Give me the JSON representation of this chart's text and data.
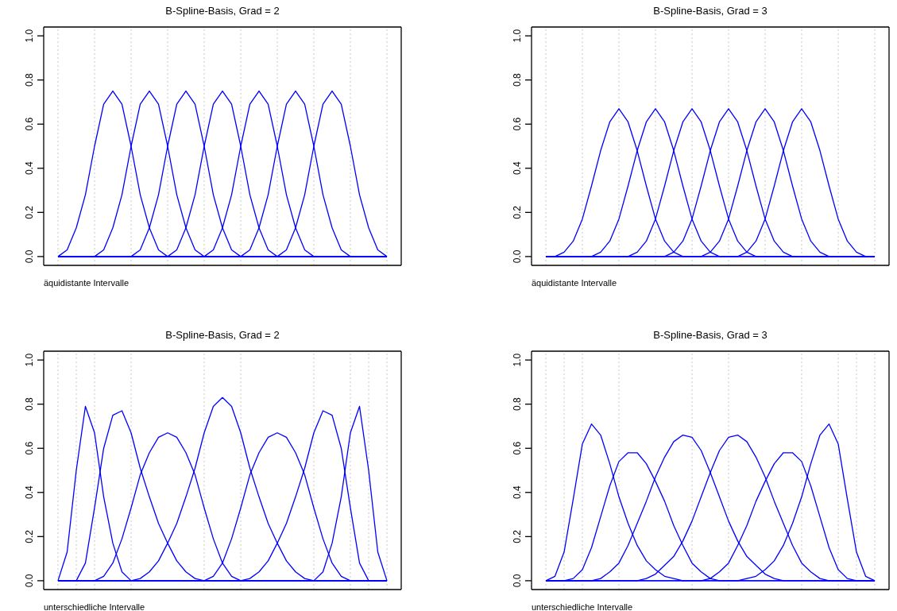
{
  "chart_data": [
    {
      "type": "line",
      "title": "B-Spline-Basis, Grad = 2",
      "annotations": [
        "äquidistante Intervalle"
      ],
      "categories": [
        null,
        null,
        null,
        null,
        null,
        null,
        null,
        null,
        null,
        null,
        null,
        null,
        null,
        null,
        null,
        null,
        null,
        null,
        null,
        null,
        null,
        null,
        null,
        null,
        null,
        null,
        null,
        null,
        null,
        null,
        null,
        null,
        null,
        null,
        null,
        null,
        null
      ],
      "ylim": [
        -0.04,
        1.04
      ],
      "yticks": [
        {
          "value": 0,
          "label": "0.0"
        },
        {
          "value": 0.2,
          "label": "0.2"
        },
        {
          "value": 0.4,
          "label": "0.4"
        },
        {
          "value": 0.6,
          "label": "0.6"
        },
        {
          "value": 0.8,
          "label": "0.8"
        },
        {
          "value": 1,
          "label": "1.0"
        }
      ],
      "tick_labels": "y",
      "grid": "x",
      "series": [
        {
          "color": "#0000ff",
          "values": [
            0,
            0.03,
            0.13,
            0.28,
            0.5,
            0.69,
            0.75,
            0.69,
            0.5,
            0.28,
            0.13,
            0.03,
            0,
            0,
            0,
            0,
            0,
            0,
            0,
            0,
            0,
            0,
            0,
            0,
            0,
            0,
            0,
            0,
            0,
            0,
            0,
            0,
            0,
            0,
            0,
            0,
            0
          ]
        },
        {
          "color": "#0000ff",
          "values": [
            0,
            0,
            0,
            0,
            0,
            0.03,
            0.13,
            0.28,
            0.5,
            0.69,
            0.75,
            0.69,
            0.5,
            0.28,
            0.13,
            0.03,
            0,
            0,
            0,
            0,
            0,
            0,
            0,
            0,
            0,
            0,
            0,
            0,
            0,
            0,
            0,
            0,
            0,
            0,
            0,
            0,
            0
          ]
        },
        {
          "color": "#0000ff",
          "values": [
            0,
            0,
            0,
            0,
            0,
            0,
            0,
            0,
            0,
            0.03,
            0.13,
            0.28,
            0.5,
            0.69,
            0.75,
            0.69,
            0.5,
            0.28,
            0.13,
            0.03,
            0,
            0,
            0,
            0,
            0,
            0,
            0,
            0,
            0,
            0,
            0,
            0,
            0,
            0,
            0,
            0,
            0
          ]
        },
        {
          "color": "#0000ff",
          "values": [
            0,
            0,
            0,
            0,
            0,
            0,
            0,
            0,
            0,
            0,
            0,
            0,
            0,
            0.03,
            0.13,
            0.28,
            0.5,
            0.69,
            0.75,
            0.69,
            0.5,
            0.28,
            0.13,
            0.03,
            0,
            0,
            0,
            0,
            0,
            0,
            0,
            0,
            0,
            0,
            0,
            0,
            0
          ]
        },
        {
          "color": "#0000ff",
          "values": [
            0,
            0,
            0,
            0,
            0,
            0,
            0,
            0,
            0,
            0,
            0,
            0,
            0,
            0,
            0,
            0,
            0,
            0.03,
            0.13,
            0.28,
            0.5,
            0.69,
            0.75,
            0.69,
            0.5,
            0.28,
            0.13,
            0.03,
            0,
            0,
            0,
            0,
            0,
            0,
            0,
            0,
            0
          ]
        },
        {
          "color": "#0000ff",
          "values": [
            0,
            0,
            0,
            0,
            0,
            0,
            0,
            0,
            0,
            0,
            0,
            0,
            0,
            0,
            0,
            0,
            0,
            0,
            0,
            0,
            0,
            0.03,
            0.13,
            0.28,
            0.5,
            0.69,
            0.75,
            0.69,
            0.5,
            0.28,
            0.13,
            0.03,
            0,
            0,
            0,
            0,
            0
          ]
        },
        {
          "color": "#0000ff",
          "values": [
            0,
            0,
            0,
            0,
            0,
            0,
            0,
            0,
            0,
            0,
            0,
            0,
            0,
            0,
            0,
            0,
            0,
            0,
            0,
            0,
            0,
            0,
            0,
            0,
            0,
            0.03,
            0.13,
            0.28,
            0.5,
            0.69,
            0.75,
            0.69,
            0.5,
            0.28,
            0.13,
            0.03,
            0
          ]
        }
      ]
    },
    {
      "type": "line",
      "title": "B-Spline-Basis, Grad = 3",
      "annotations": [
        "äquidistante Intervalle"
      ],
      "categories": [
        null,
        null,
        null,
        null,
        null,
        null,
        null,
        null,
        null,
        null,
        null,
        null,
        null,
        null,
        null,
        null,
        null,
        null,
        null,
        null,
        null,
        null,
        null,
        null,
        null,
        null,
        null,
        null,
        null,
        null,
        null,
        null,
        null,
        null,
        null,
        null,
        null
      ],
      "ylim": [
        -0.04,
        1.04
      ],
      "yticks": [
        {
          "value": 0,
          "label": "0.0"
        },
        {
          "value": 0.2,
          "label": "0.2"
        },
        {
          "value": 0.4,
          "label": "0.4"
        },
        {
          "value": 0.6,
          "label": "0.6"
        },
        {
          "value": 0.8,
          "label": "0.8"
        },
        {
          "value": 1,
          "label": "1.0"
        }
      ],
      "tick_labels": "y",
      "grid": "x",
      "series": [
        {
          "color": "#0000ff",
          "values": [
            0,
            0,
            0.02,
            0.07,
            0.17,
            0.32,
            0.48,
            0.61,
            0.67,
            0.61,
            0.48,
            0.32,
            0.17,
            0.07,
            0.02,
            0,
            0,
            0,
            0,
            0,
            0,
            0,
            0,
            0,
            0,
            0,
            0,
            0,
            0,
            0,
            0,
            0,
            0,
            0,
            0,
            0,
            0
          ]
        },
        {
          "color": "#0000ff",
          "values": [
            0,
            0,
            0,
            0,
            0,
            0,
            0.02,
            0.07,
            0.17,
            0.32,
            0.48,
            0.61,
            0.67,
            0.61,
            0.48,
            0.32,
            0.17,
            0.07,
            0.02,
            0,
            0,
            0,
            0,
            0,
            0,
            0,
            0,
            0,
            0,
            0,
            0,
            0,
            0,
            0,
            0,
            0,
            0
          ]
        },
        {
          "color": "#0000ff",
          "values": [
            0,
            0,
            0,
            0,
            0,
            0,
            0,
            0,
            0,
            0,
            0.02,
            0.07,
            0.17,
            0.32,
            0.48,
            0.61,
            0.67,
            0.61,
            0.48,
            0.32,
            0.17,
            0.07,
            0.02,
            0,
            0,
            0,
            0,
            0,
            0,
            0,
            0,
            0,
            0,
            0,
            0,
            0,
            0
          ]
        },
        {
          "color": "#0000ff",
          "values": [
            0,
            0,
            0,
            0,
            0,
            0,
            0,
            0,
            0,
            0,
            0,
            0,
            0,
            0,
            0.02,
            0.07,
            0.17,
            0.32,
            0.48,
            0.61,
            0.67,
            0.61,
            0.48,
            0.32,
            0.17,
            0.07,
            0.02,
            0,
            0,
            0,
            0,
            0,
            0,
            0,
            0,
            0,
            0
          ]
        },
        {
          "color": "#0000ff",
          "values": [
            0,
            0,
            0,
            0,
            0,
            0,
            0,
            0,
            0,
            0,
            0,
            0,
            0,
            0,
            0,
            0,
            0,
            0,
            0.02,
            0.07,
            0.17,
            0.32,
            0.48,
            0.61,
            0.67,
            0.61,
            0.48,
            0.32,
            0.17,
            0.07,
            0.02,
            0,
            0,
            0,
            0,
            0,
            0
          ]
        },
        {
          "color": "#0000ff",
          "values": [
            0,
            0,
            0,
            0,
            0,
            0,
            0,
            0,
            0,
            0,
            0,
            0,
            0,
            0,
            0,
            0,
            0,
            0,
            0,
            0,
            0,
            0,
            0.02,
            0.07,
            0.17,
            0.32,
            0.48,
            0.61,
            0.67,
            0.61,
            0.48,
            0.32,
            0.17,
            0.07,
            0.02,
            0,
            0
          ]
        }
      ]
    },
    {
      "type": "line",
      "title": "B-Spline-Basis, Grad = 2",
      "annotations": [
        "unterschiedliche Intervalle"
      ],
      "categories": [
        null,
        null,
        null,
        null,
        null,
        null,
        null,
        null,
        null,
        null,
        null,
        null,
        null,
        null,
        null,
        null,
        null,
        null,
        null,
        null,
        null,
        null,
        null,
        null,
        null,
        null,
        null,
        null,
        null,
        null,
        null,
        null,
        null,
        null,
        null,
        null,
        null
      ],
      "ylim": [
        -0.04,
        1.04
      ],
      "yticks": [
        {
          "value": 0,
          "label": "0.0"
        },
        {
          "value": 0.2,
          "label": "0.2"
        },
        {
          "value": 0.4,
          "label": "0.4"
        },
        {
          "value": 0.6,
          "label": "0.6"
        },
        {
          "value": 0.8,
          "label": "0.8"
        },
        {
          "value": 1,
          "label": "1.0"
        }
      ],
      "tick_labels": "y",
      "grid": "x",
      "series": [
        {
          "color": "#0000ff",
          "values": [
            0,
            0.13,
            0.5,
            0.79,
            0.67,
            0.38,
            0.17,
            0.04,
            0,
            0,
            0,
            0,
            0,
            0,
            0,
            0,
            0,
            0,
            0,
            0,
            0,
            0,
            0,
            0,
            0,
            0,
            0,
            0,
            0,
            0,
            0,
            0,
            0,
            0,
            0,
            0,
            0
          ]
        },
        {
          "color": "#0000ff",
          "values": [
            0,
            0,
            0,
            0.08,
            0.33,
            0.6,
            0.75,
            0.77,
            0.67,
            0.51,
            0.38,
            0.26,
            0.17,
            0.09,
            0.04,
            0.01,
            0,
            0,
            0,
            0,
            0,
            0,
            0,
            0,
            0,
            0,
            0,
            0,
            0,
            0,
            0,
            0,
            0,
            0,
            0,
            0,
            0
          ]
        },
        {
          "color": "#0000ff",
          "values": [
            0,
            0,
            0,
            0,
            0,
            0.02,
            0.08,
            0.19,
            0.33,
            0.48,
            0.58,
            0.65,
            0.67,
            0.65,
            0.58,
            0.48,
            0.33,
            0.19,
            0.08,
            0.02,
            0,
            0,
            0,
            0,
            0,
            0,
            0,
            0,
            0,
            0,
            0,
            0,
            0,
            0,
            0,
            0,
            0
          ]
        },
        {
          "color": "#0000ff",
          "values": [
            0,
            0,
            0,
            0,
            0,
            0,
            0,
            0,
            0,
            0.01,
            0.04,
            0.09,
            0.17,
            0.26,
            0.38,
            0.51,
            0.67,
            0.79,
            0.83,
            0.79,
            0.67,
            0.51,
            0.38,
            0.26,
            0.17,
            0.09,
            0.04,
            0.01,
            0,
            0,
            0,
            0,
            0,
            0,
            0,
            0,
            0
          ]
        },
        {
          "color": "#0000ff",
          "values": [
            0,
            0,
            0,
            0,
            0,
            0,
            0,
            0,
            0,
            0,
            0,
            0,
            0,
            0,
            0,
            0,
            0,
            0.02,
            0.08,
            0.19,
            0.33,
            0.48,
            0.58,
            0.65,
            0.67,
            0.65,
            0.58,
            0.48,
            0.33,
            0.19,
            0.08,
            0.02,
            0,
            0,
            0,
            0,
            0
          ]
        },
        {
          "color": "#0000ff",
          "values": [
            0,
            0,
            0,
            0,
            0,
            0,
            0,
            0,
            0,
            0,
            0,
            0,
            0,
            0,
            0,
            0,
            0,
            0,
            0,
            0,
            0,
            0.01,
            0.04,
            0.09,
            0.17,
            0.26,
            0.38,
            0.51,
            0.67,
            0.77,
            0.75,
            0.6,
            0.33,
            0.08,
            0,
            0,
            0
          ]
        },
        {
          "color": "#0000ff",
          "values": [
            0,
            0,
            0,
            0,
            0,
            0,
            0,
            0,
            0,
            0,
            0,
            0,
            0,
            0,
            0,
            0,
            0,
            0,
            0,
            0,
            0,
            0,
            0,
            0,
            0,
            0,
            0,
            0,
            0,
            0.04,
            0.17,
            0.38,
            0.67,
            0.79,
            0.5,
            0.13,
            0
          ]
        }
      ]
    },
    {
      "type": "line",
      "title": "B-Spline-Basis, Grad = 3",
      "annotations": [
        "unterschiedliche Intervalle"
      ],
      "categories": [
        null,
        null,
        null,
        null,
        null,
        null,
        null,
        null,
        null,
        null,
        null,
        null,
        null,
        null,
        null,
        null,
        null,
        null,
        null,
        null,
        null,
        null,
        null,
        null,
        null,
        null,
        null,
        null,
        null,
        null,
        null,
        null,
        null,
        null,
        null,
        null,
        null
      ],
      "ylim": [
        -0.04,
        1.04
      ],
      "yticks": [
        {
          "value": 0,
          "label": "0.0"
        },
        {
          "value": 0.2,
          "label": "0.2"
        },
        {
          "value": 0.4,
          "label": "0.4"
        },
        {
          "value": 0.6,
          "label": "0.6"
        },
        {
          "value": 0.8,
          "label": "0.8"
        },
        {
          "value": 1,
          "label": "1.0"
        }
      ],
      "tick_labels": "y",
      "grid": "x",
      "series": [
        {
          "color": "#0000ff",
          "values": [
            0,
            0.02,
            0.13,
            0.37,
            0.62,
            0.71,
            0.66,
            0.53,
            0.38,
            0.26,
            0.16,
            0.09,
            0.05,
            0.02,
            0.01,
            0,
            0,
            0,
            0,
            0,
            0,
            0,
            0,
            0,
            0,
            0,
            0,
            0,
            0,
            0,
            0,
            0,
            0,
            0,
            0,
            0,
            0
          ]
        },
        {
          "color": "#0000ff",
          "values": [
            0,
            0,
            0,
            0.01,
            0.05,
            0.15,
            0.29,
            0.43,
            0.54,
            0.58,
            0.58,
            0.53,
            0.45,
            0.36,
            0.25,
            0.16,
            0.08,
            0.04,
            0.01,
            0,
            0,
            0,
            0,
            0,
            0,
            0,
            0,
            0,
            0,
            0,
            0,
            0,
            0,
            0,
            0,
            0,
            0
          ]
        },
        {
          "color": "#0000ff",
          "values": [
            0,
            0,
            0,
            0,
            0,
            0,
            0.01,
            0.04,
            0.08,
            0.16,
            0.26,
            0.36,
            0.47,
            0.56,
            0.63,
            0.66,
            0.65,
            0.59,
            0.49,
            0.38,
            0.27,
            0.18,
            0.11,
            0.07,
            0.03,
            0.01,
            0,
            0,
            0,
            0,
            0,
            0,
            0,
            0,
            0,
            0,
            0
          ]
        },
        {
          "color": "#0000ff",
          "values": [
            0,
            0,
            0,
            0,
            0,
            0,
            0,
            0,
            0,
            0,
            0,
            0.01,
            0.03,
            0.07,
            0.11,
            0.18,
            0.27,
            0.38,
            0.49,
            0.59,
            0.65,
            0.66,
            0.63,
            0.56,
            0.47,
            0.36,
            0.26,
            0.16,
            0.08,
            0.04,
            0.01,
            0,
            0,
            0,
            0,
            0,
            0
          ]
        },
        {
          "color": "#0000ff",
          "values": [
            0,
            0,
            0,
            0,
            0,
            0,
            0,
            0,
            0,
            0,
            0,
            0,
            0,
            0,
            0,
            0,
            0,
            0,
            0.01,
            0.04,
            0.08,
            0.16,
            0.25,
            0.36,
            0.45,
            0.53,
            0.58,
            0.58,
            0.54,
            0.43,
            0.29,
            0.15,
            0.05,
            0.01,
            0,
            0,
            0
          ]
        },
        {
          "color": "#0000ff",
          "values": [
            0,
            0,
            0,
            0,
            0,
            0,
            0,
            0,
            0,
            0,
            0,
            0,
            0,
            0,
            0,
            0,
            0,
            0,
            0,
            0,
            0,
            0,
            0.01,
            0.02,
            0.05,
            0.09,
            0.16,
            0.26,
            0.38,
            0.53,
            0.66,
            0.71,
            0.62,
            0.37,
            0.13,
            0.02,
            0
          ]
        }
      ]
    }
  ]
}
